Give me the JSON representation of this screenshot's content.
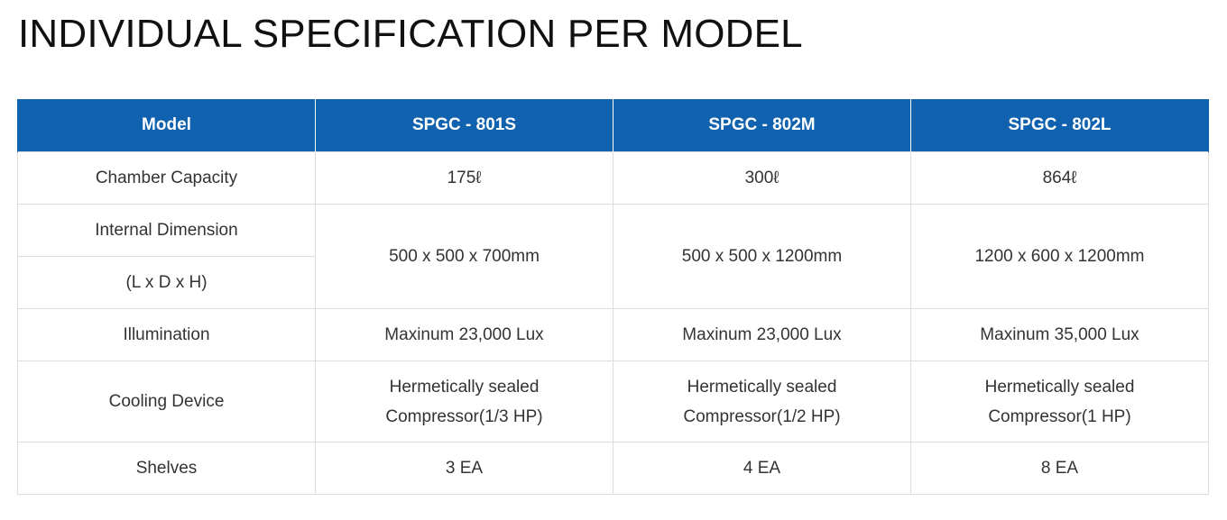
{
  "page": {
    "title": "INDIVIDUAL SPECIFICATION PER MODEL"
  },
  "table": {
    "headers": [
      "Model",
      "SPGC - 801S",
      "SPGC - 802M",
      "SPGC - 802L"
    ],
    "rows": {
      "chamber_capacity": {
        "label": "Chamber Capacity",
        "values": [
          "175ℓ",
          "300ℓ",
          "864ℓ"
        ]
      },
      "internal_dimension": {
        "label_line1": "Internal Dimension",
        "label_line2": "(L x D x H)",
        "values": [
          "500 x 500 x 700mm",
          "500 x 500 x 1200mm",
          "1200 x 600 x 1200mm"
        ]
      },
      "illumination": {
        "label": "Illumination",
        "values": [
          "Maxinum 23,000 Lux",
          "Maxinum 23,000 Lux",
          "Maxinum 35,000 Lux"
        ]
      },
      "cooling_device": {
        "label": "Cooling Device",
        "values": [
          {
            "line1": "Hermetically sealed",
            "line2": "Compressor(1/3 HP)"
          },
          {
            "line1": "Hermetically sealed",
            "line2": "Compressor(1/2 HP)"
          },
          {
            "line1": "Hermetically sealed",
            "line2": "Compressor(1 HP)"
          }
        ]
      },
      "shelves": {
        "label": "Shelves",
        "values": [
          "3 EA",
          "4 EA",
          "8 EA"
        ]
      }
    }
  },
  "colors": {
    "header_background": "#1162ae",
    "header_text": "#ffffff",
    "cell_border": "#dddddd",
    "body_text": "#333333"
  }
}
